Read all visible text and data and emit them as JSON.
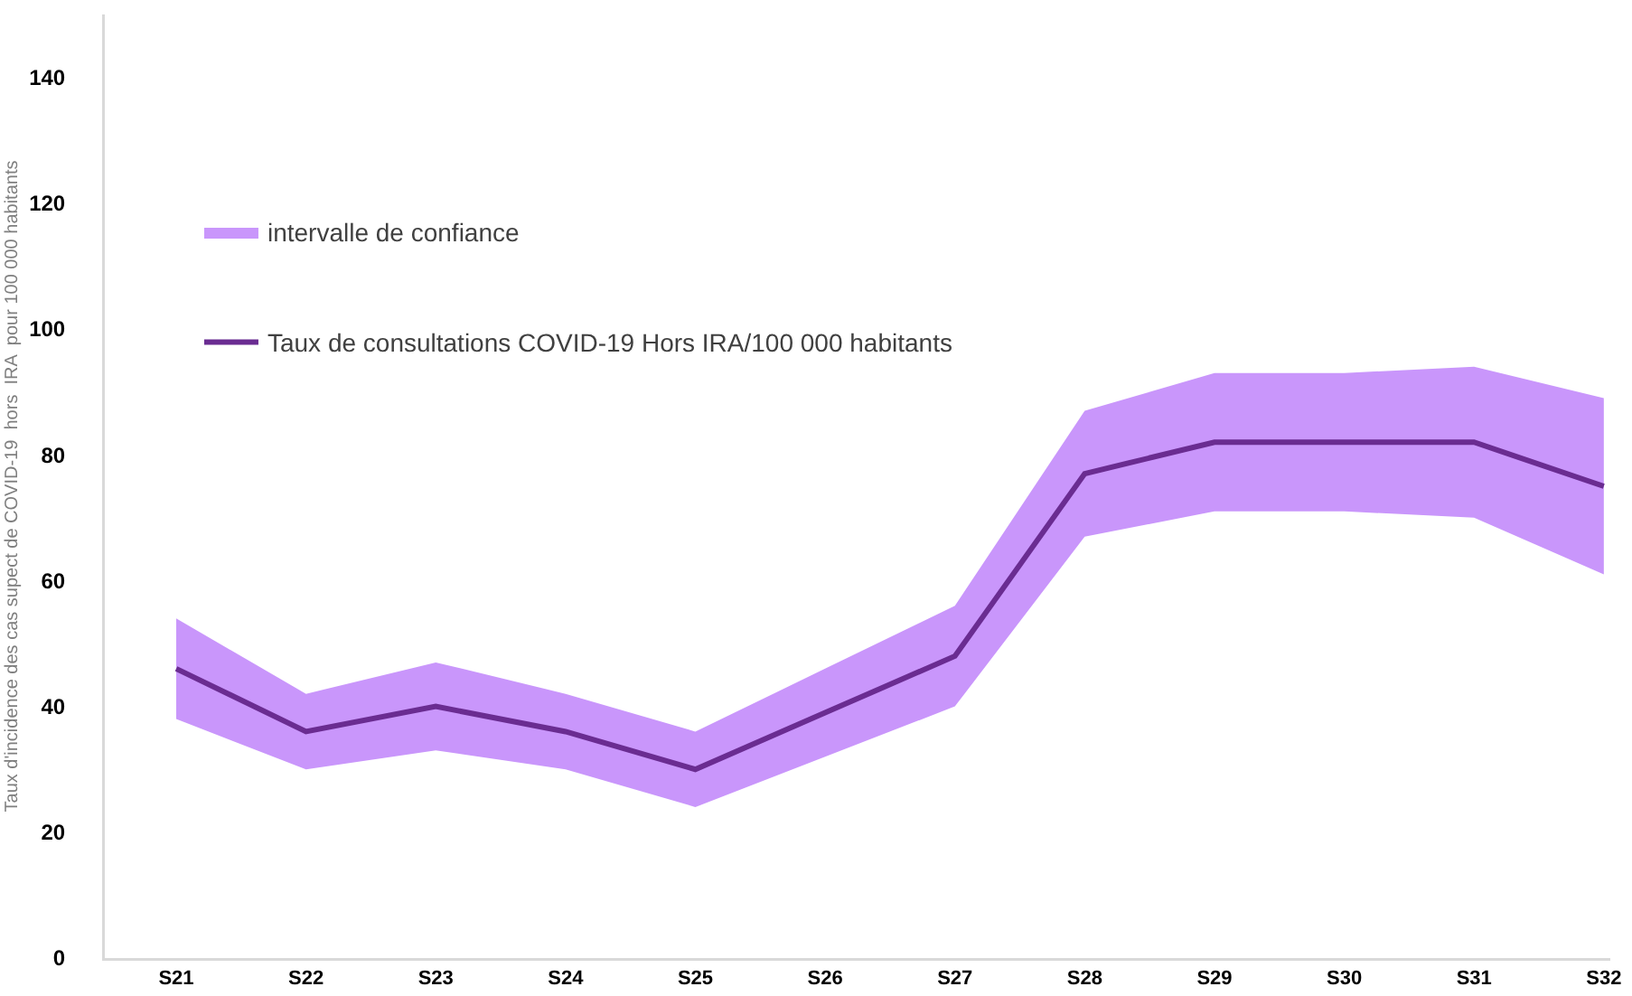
{
  "chart_data": {
    "type": "line",
    "ylabel": "Taux d'incidence des cas supect de COVID-19  hors  IRA  pour 100 000 habitants",
    "categories": [
      "S21",
      "S22",
      "S23",
      "S24",
      "S25",
      "S26",
      "S27",
      "S28",
      "S29",
      "S30",
      "S31",
      "S32"
    ],
    "series": [
      {
        "type": "area",
        "name": "intervalle de confiance",
        "color": "#c996fb",
        "values": [
          null,
          null,
          null,
          null,
          null,
          null,
          null,
          null,
          null,
          null,
          null,
          null
        ],
        "lower": [
          38,
          30,
          33,
          30,
          24,
          32,
          40,
          67,
          71,
          71,
          70,
          61
        ],
        "upper": [
          54,
          42,
          47,
          42,
          36,
          46,
          56,
          87,
          93,
          93,
          94,
          89
        ]
      },
      {
        "name": "Taux de consultations COVID-19 Hors IRA/100 000 habitants",
        "color": "#6a2c91",
        "values": [
          46,
          36,
          40,
          36,
          30,
          39,
          48,
          77,
          82,
          82,
          82,
          75
        ]
      }
    ],
    "ylim": [
      0,
      150
    ],
    "yticks": [
      0,
      20,
      40,
      60,
      80,
      100,
      120,
      140
    ],
    "grid": false,
    "legend": "top left",
    "line_style": "solid",
    "marker": "none"
  }
}
